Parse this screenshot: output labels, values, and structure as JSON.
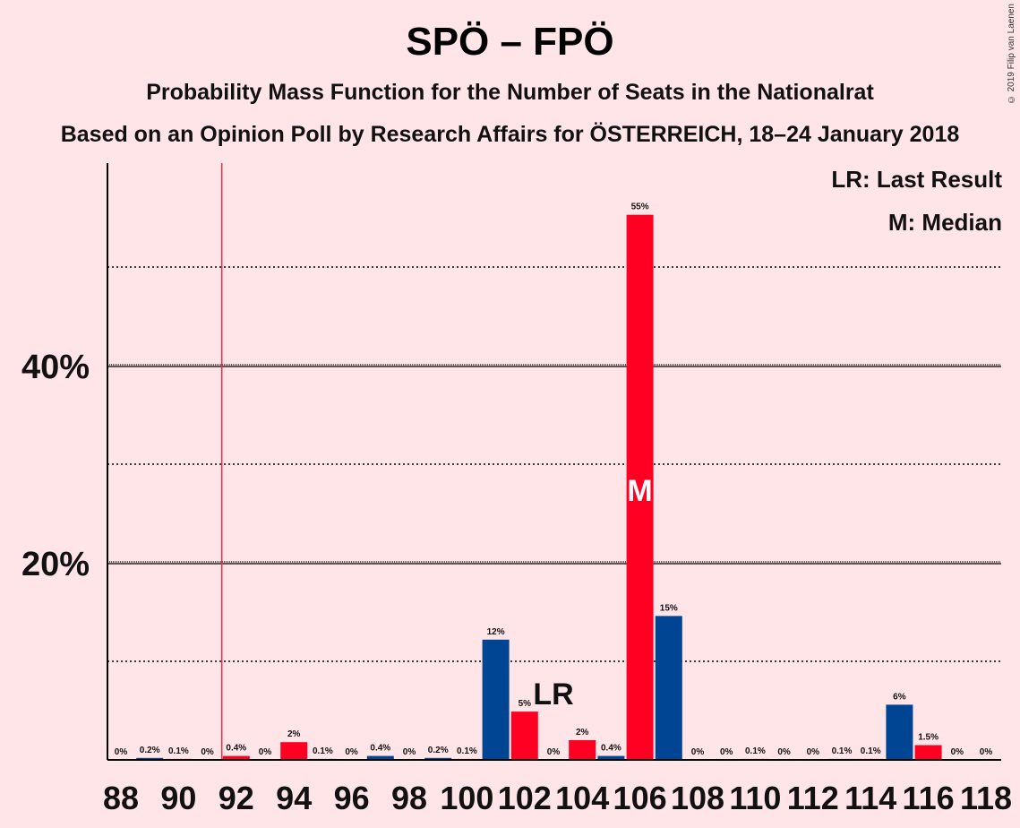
{
  "title": "SPÖ – FPÖ",
  "subtitle": "Probability Mass Function for the Number of Seats in the Nationalrat",
  "subtitle2": "Based on an Opinion Poll by Research Affairs for ÖSTERREICH, 18–24 January 2018",
  "copyright": "© 2019 Filip van Laenen",
  "legend": {
    "last_result": "LR: Last Result",
    "median": "M: Median"
  },
  "colors": {
    "background": "#FFE4E8",
    "red": "#FF0022",
    "blue": "#004494",
    "last_result_line": "#E83040"
  },
  "chart_data": {
    "type": "bar",
    "x": [
      88,
      89,
      90,
      91,
      92,
      93,
      94,
      95,
      96,
      97,
      98,
      99,
      100,
      101,
      102,
      103,
      104,
      105,
      106,
      107,
      108,
      109,
      110,
      111,
      112,
      113,
      114,
      115,
      116,
      117,
      118
    ],
    "values": [
      0,
      0.2,
      0.1,
      0,
      0.4,
      0,
      1.8,
      0.1,
      0,
      0.4,
      0,
      0.2,
      0.1,
      12.2,
      4.9,
      0,
      2.0,
      0.4,
      55.3,
      14.6,
      0,
      0,
      0.1,
      0,
      0,
      0.1,
      0.1,
      5.6,
      1.5,
      0,
      0
    ],
    "labels": [
      "0%",
      "0.2%",
      "0.1%",
      "0%",
      "0.4%",
      "0%",
      "2%",
      "0.1%",
      "0%",
      "0.4%",
      "0%",
      "0.2%",
      "0.1%",
      "12%",
      "5%",
      "0%",
      "2%",
      "0.4%",
      "55%",
      "15%",
      "0%",
      "0%",
      "0.1%",
      "0%",
      "0%",
      "0.1%",
      "0.1%",
      "6%",
      "1.5%",
      "0%",
      "0%"
    ],
    "colors": [
      "red",
      "blue",
      "red",
      "blue",
      "red",
      "blue",
      "red",
      "blue",
      "red",
      "blue",
      "red",
      "blue",
      "red",
      "blue",
      "red",
      "blue",
      "red",
      "blue",
      "red",
      "blue",
      "red",
      "blue",
      "red",
      "blue",
      "red",
      "blue",
      "red",
      "blue",
      "red",
      "blue",
      "red"
    ],
    "x_ticks": [
      88,
      90,
      92,
      94,
      96,
      98,
      100,
      102,
      104,
      106,
      108,
      110,
      112,
      114,
      116,
      118
    ],
    "y_ticks": [
      20,
      40
    ],
    "y_tick_labels": [
      "20%",
      "40%"
    ],
    "y_minor_ticks": [
      10,
      30,
      50
    ],
    "ylim": [
      0,
      60
    ],
    "last_result": 91.5,
    "last_result_label": "LR",
    "last_result_label_at": 103,
    "median": 106,
    "median_label": "M"
  }
}
